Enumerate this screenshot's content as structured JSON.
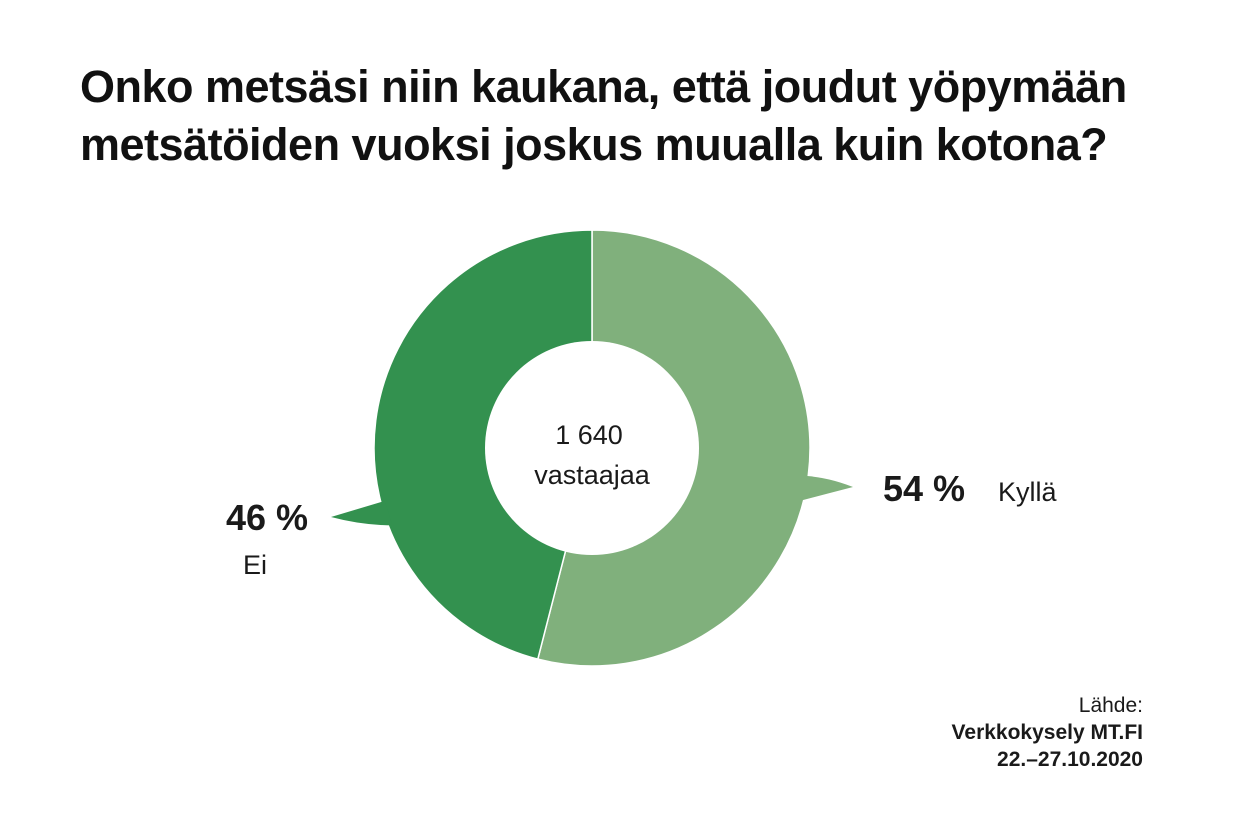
{
  "title": {
    "line1": "Onko metsäsi niin kaukana, että joudut yöpymään",
    "line2": "metsätöiden vuoksi joskus muualla kuin kotona?"
  },
  "center": {
    "count": "1 640",
    "unit": "vastaajaa"
  },
  "source": {
    "label": "Lähde:",
    "name": "Verkkokysely MT.FI",
    "date": "22.–27.10.2020"
  },
  "chart_data": {
    "type": "pie",
    "title": "Onko metsäsi niin kaukana, että joudut yöpymään metsätöiden vuoksi joskus muualla kuin kotona?",
    "categories": [
      "Kyllä",
      "Ei"
    ],
    "values": [
      54,
      46
    ],
    "value_labels": [
      "54 %",
      "46 %"
    ],
    "colors": [
      "#80b07c",
      "#33914f"
    ],
    "total_respondents": "1 640"
  }
}
